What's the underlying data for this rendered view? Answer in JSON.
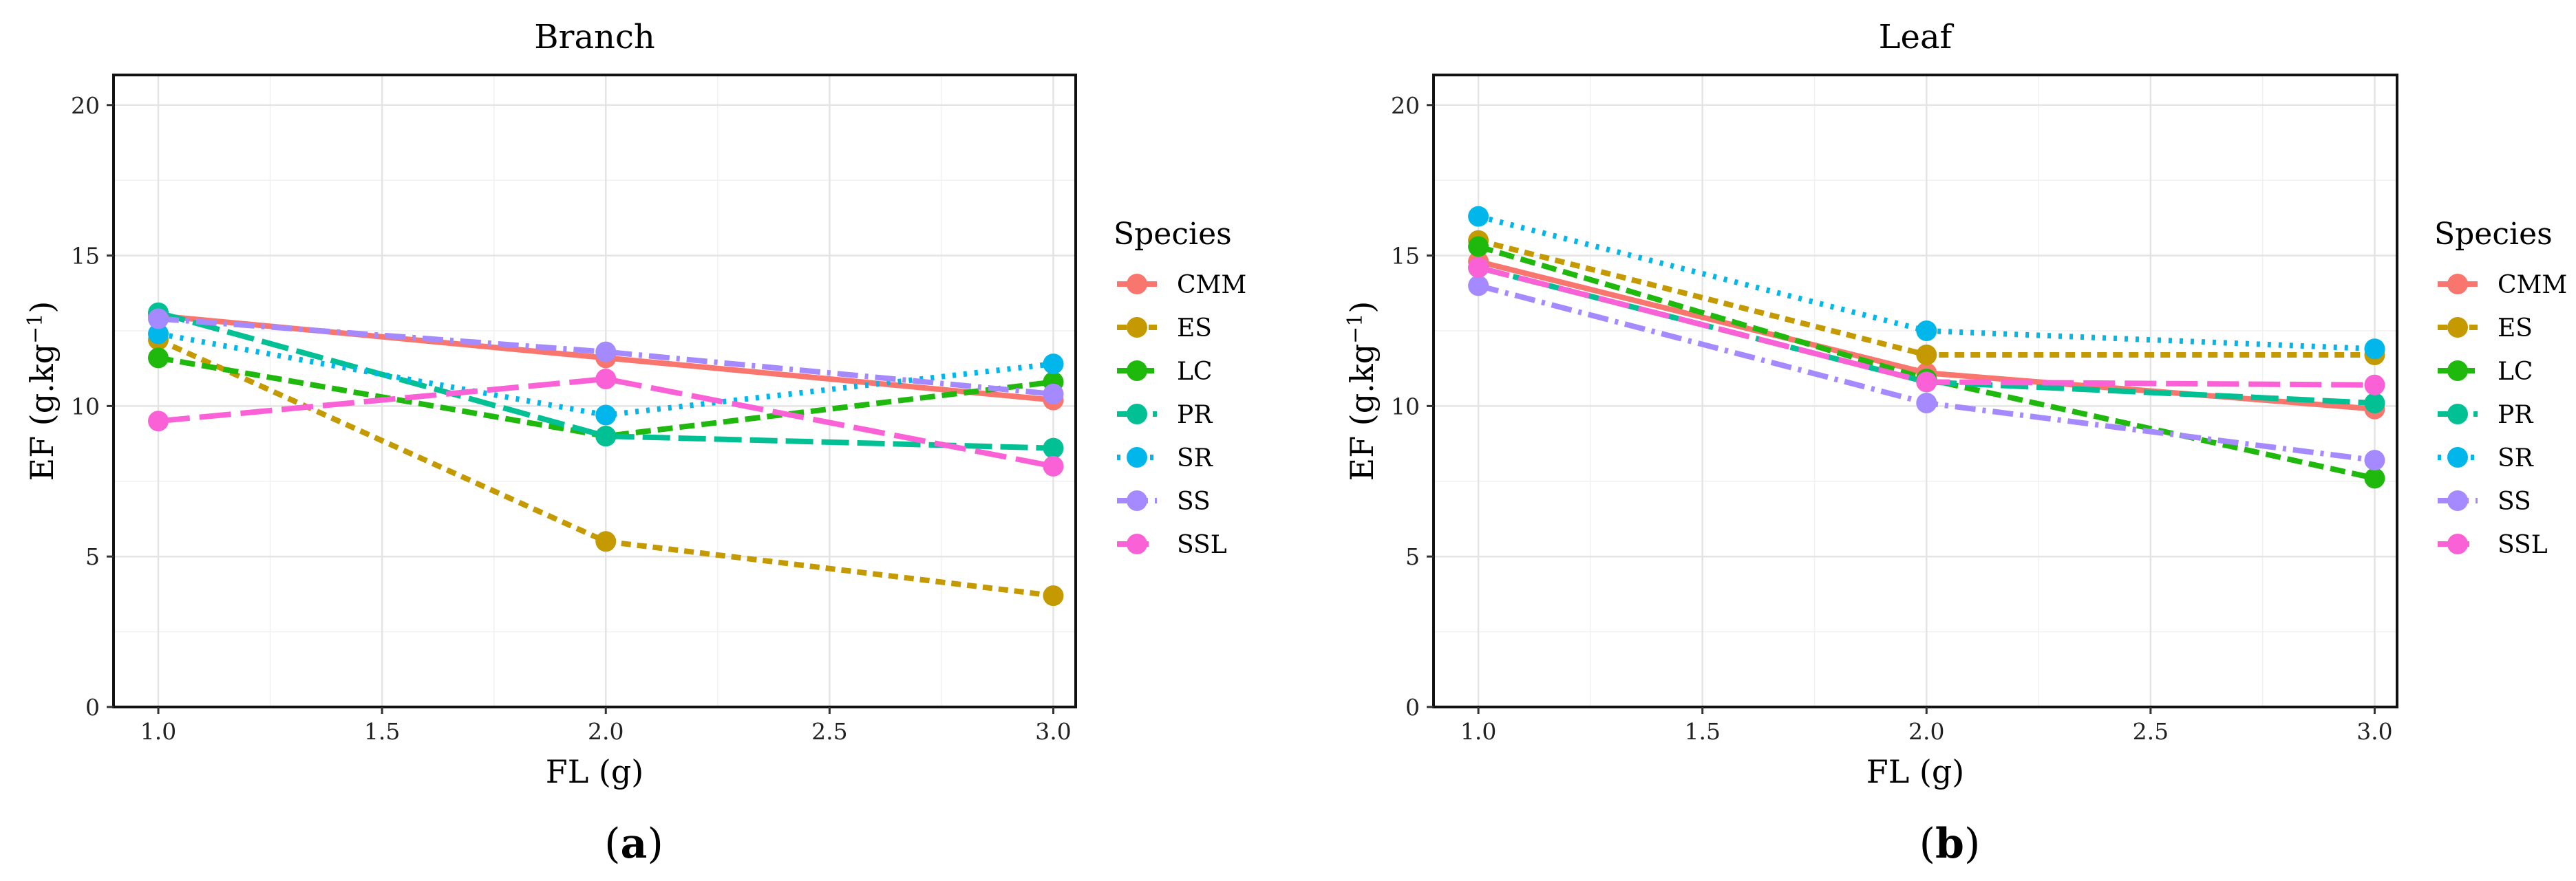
{
  "chart_data": [
    {
      "type": "line",
      "title": "Branch",
      "xlabel": "FL (g)",
      "ylabel_main": "EF (g.kg",
      "ylabel_sup": "−1",
      "ylabel_close": ")",
      "xlim": [
        0.9,
        3.05
      ],
      "ylim": [
        0,
        21
      ],
      "xticks": [
        1.0,
        1.5,
        2.0,
        2.5,
        3.0
      ],
      "xtick_labels": [
        "1.0",
        "1.5",
        "2.0",
        "2.5",
        "3.0"
      ],
      "yticks": [
        0,
        5,
        10,
        15,
        20
      ],
      "ytick_labels": [
        "0",
        "5",
        "10",
        "15",
        "20"
      ],
      "grid": true,
      "x": [
        1.0,
        2.0,
        3.0
      ],
      "series": [
        {
          "name": "CMM",
          "values": [
            13.0,
            11.6,
            10.2
          ]
        },
        {
          "name": "ES",
          "values": [
            12.2,
            5.5,
            3.7
          ]
        },
        {
          "name": "LC",
          "values": [
            11.6,
            9.0,
            10.8
          ]
        },
        {
          "name": "PR",
          "values": [
            13.1,
            9.0,
            8.6
          ]
        },
        {
          "name": "SR",
          "values": [
            12.4,
            9.7,
            11.4
          ]
        },
        {
          "name": "SS",
          "values": [
            12.9,
            11.8,
            10.4
          ]
        },
        {
          "name": "SSL",
          "values": [
            9.5,
            10.9,
            8.0
          ]
        }
      ],
      "caption_open": "(",
      "caption_letter": "a",
      "caption_close": ")"
    },
    {
      "type": "line",
      "title": "Leaf",
      "xlabel": "FL (g)",
      "ylabel_main": "EF (g.kg",
      "ylabel_sup": "−1",
      "ylabel_close": ")",
      "xlim": [
        0.9,
        3.05
      ],
      "ylim": [
        0,
        21
      ],
      "xticks": [
        1.0,
        1.5,
        2.0,
        2.5,
        3.0
      ],
      "xtick_labels": [
        "1.0",
        "1.5",
        "2.0",
        "2.5",
        "3.0"
      ],
      "yticks": [
        0,
        5,
        10,
        15,
        20
      ],
      "ytick_labels": [
        "0",
        "5",
        "10",
        "15",
        "20"
      ],
      "grid": true,
      "x": [
        1.0,
        2.0,
        3.0
      ],
      "series": [
        {
          "name": "CMM",
          "values": [
            14.8,
            11.1,
            9.9
          ]
        },
        {
          "name": "ES",
          "values": [
            15.5,
            11.7,
            11.7
          ]
        },
        {
          "name": "LC",
          "values": [
            15.3,
            10.9,
            7.6
          ]
        },
        {
          "name": "PR",
          "values": [
            14.6,
            10.8,
            10.1
          ]
        },
        {
          "name": "SR",
          "values": [
            16.3,
            12.5,
            11.9
          ]
        },
        {
          "name": "SS",
          "values": [
            14.0,
            10.1,
            8.2
          ]
        },
        {
          "name": "SSL",
          "values": [
            14.6,
            10.8,
            10.7
          ]
        }
      ],
      "caption_open": "(",
      "caption_letter": "b",
      "caption_close": ")"
    }
  ],
  "legend": {
    "title": "Species",
    "items": [
      {
        "name": "CMM",
        "color": "#F8766D",
        "dash": "solid"
      },
      {
        "name": "ES",
        "color": "#C49A00",
        "dash": "dashed-short"
      },
      {
        "name": "LC",
        "color": "#1FB80C",
        "dash": "dashed"
      },
      {
        "name": "PR",
        "color": "#00C094",
        "dash": "long-dash"
      },
      {
        "name": "SR",
        "color": "#00B6EB",
        "dash": "dotted"
      },
      {
        "name": "SS",
        "color": "#A58AFF",
        "dash": "dash-dot"
      },
      {
        "name": "SSL",
        "color": "#FB61D7",
        "dash": "long-dash-wide"
      }
    ]
  }
}
